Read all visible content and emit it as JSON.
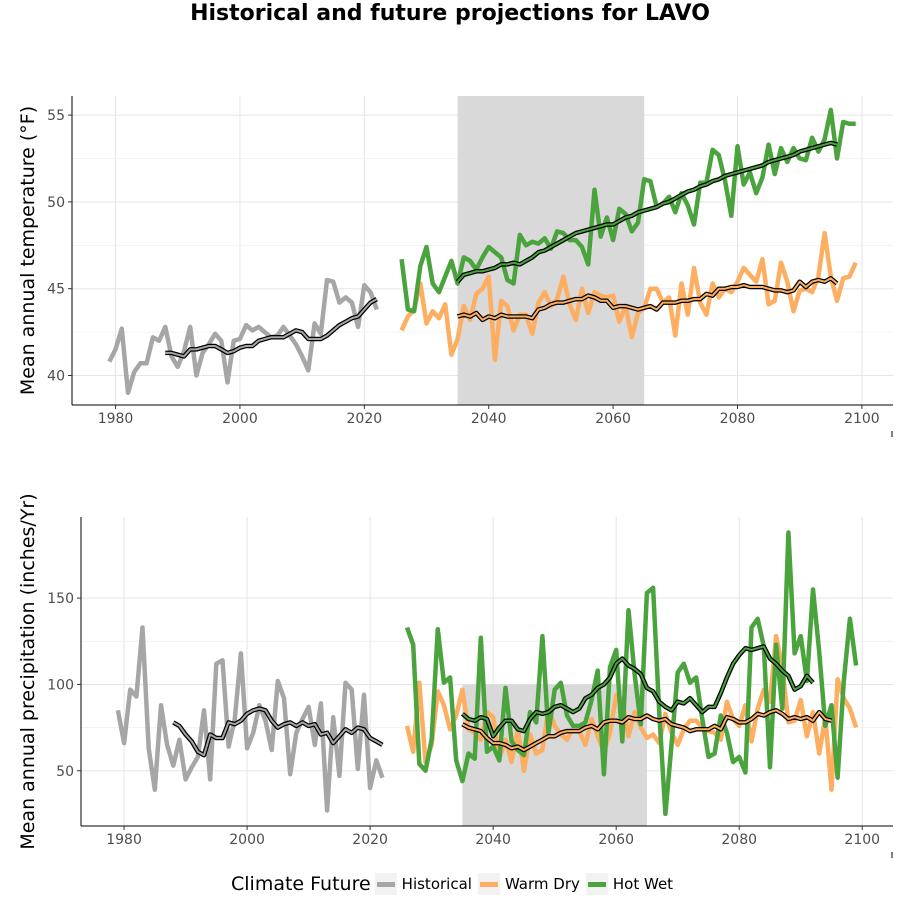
{
  "title": "Historical and future projections for LAVO",
  "legend": {
    "title": "Climate Future",
    "items": [
      {
        "label": "Historical",
        "color": "#a6a6a6"
      },
      {
        "label": "Warm Dry",
        "color": "#fdae61"
      },
      {
        "label": "Hot Wet",
        "color": "#4aa33d"
      }
    ]
  },
  "chart_data": [
    {
      "type": "line",
      "ylabel": "Mean annual temperature (°F)",
      "xlabel": "",
      "xlim": [
        1973,
        2105
      ],
      "ylim": [
        38.3,
        56.1
      ],
      "xticks": [
        1980,
        2000,
        2020,
        2040,
        2060,
        2080,
        2100
      ],
      "yticks": [
        40,
        45,
        50,
        55
      ],
      "shaded_period": [
        2035,
        2065
      ],
      "grid": true,
      "series": [
        {
          "name": "Historical",
          "color": "#a6a6a6",
          "x_start": 1979,
          "values": [
            40.8,
            41.5,
            42.7,
            39.0,
            40.2,
            40.7,
            40.7,
            42.2,
            42.0,
            42.8,
            41.1,
            40.5,
            41.4,
            42.8,
            40.0,
            41.3,
            41.8,
            42.4,
            42.0,
            39.6,
            42.0,
            42.1,
            42.9,
            42.6,
            42.8,
            42.5,
            42.2,
            42.3,
            42.8,
            42.3,
            41.8,
            41.1,
            40.3,
            43.0,
            42.4,
            45.5,
            45.4,
            44.2,
            44.5,
            44.2,
            42.8,
            45.2,
            44.8,
            43.8
          ]
        },
        {
          "name": "Historical (rolling mean)",
          "color": "#000000",
          "smooth": true,
          "x_start": 1988,
          "values": [
            41.3,
            41.3,
            41.2,
            41.1,
            41.5,
            41.5,
            41.6,
            41.7,
            41.7,
            41.5,
            41.3,
            41.4,
            41.6,
            41.7,
            41.7,
            42.0,
            42.1,
            42.2,
            42.2,
            42.2,
            42.4,
            42.6,
            42.5,
            42.1,
            42.1,
            42.1,
            42.3,
            42.6,
            42.9,
            43.1,
            43.3,
            43.4,
            43.8,
            44.2,
            44.4
          ]
        },
        {
          "name": "Warm Dry",
          "color": "#fdae61",
          "x_start": 2026,
          "values": [
            42.6,
            43.4,
            43.8,
            45.3,
            43.0,
            43.7,
            43.3,
            44.1,
            41.2,
            42.1,
            44.0,
            43.2,
            44.7,
            45.0,
            45.7,
            40.9,
            44.3,
            44.0,
            42.6,
            43.5,
            43.5,
            42.4,
            44.2,
            44.8,
            44.0,
            44.4,
            45.7,
            44.1,
            43.2,
            45.0,
            43.6,
            44.8,
            44.6,
            44.5,
            44.6,
            43.1,
            44.0,
            42.2,
            43.6,
            43.9,
            45.0,
            45.0,
            44.2,
            44.5,
            42.3,
            45.3,
            43.5,
            46.2,
            44.2,
            43.5,
            45.3,
            44.5,
            45.0,
            44.8,
            45.4,
            46.2,
            45.8,
            45.4,
            46.7,
            44.1,
            44.3,
            46.5,
            45.4,
            43.7,
            44.9,
            45.0,
            44.8,
            45.7,
            48.2,
            45.7,
            44.3,
            45.6,
            45.7,
            46.5
          ]
        },
        {
          "name": "Hot Wet",
          "color": "#4aa33d",
          "x_start": 2026,
          "values": [
            46.7,
            43.8,
            43.7,
            46.3,
            47.4,
            45.3,
            44.8,
            45.7,
            46.6,
            45.3,
            46.8,
            46.6,
            46.1,
            46.8,
            47.4,
            47.1,
            46.8,
            45.5,
            45.3,
            48.1,
            47.5,
            47.7,
            47.6,
            47.9,
            47.3,
            48.3,
            48.2,
            47.8,
            47.8,
            47.4,
            46.4,
            50.7,
            48.0,
            49.1,
            47.8,
            49.6,
            49.3,
            48.3,
            48.8,
            51.3,
            51.2,
            49.7,
            49.9,
            50.3,
            49.4,
            50.5,
            49.8,
            48.7,
            51.1,
            51.1,
            53.0,
            52.7,
            51.2,
            49.2,
            53.2,
            51.0,
            51.7,
            50.5,
            51.4,
            53.3,
            51.6,
            53.1,
            52.3,
            53.1,
            52.5,
            52.4,
            53.7,
            52.9,
            53.6,
            55.3,
            52.5,
            54.6,
            54.5,
            54.5
          ]
        },
        {
          "name": "Warm Dry (rolling mean)",
          "color": "#000000",
          "smooth": true,
          "x_start": 2035,
          "values": [
            43.4,
            43.5,
            43.4,
            43.6,
            43.2,
            43.4,
            43.3,
            43.5,
            43.4,
            43.4,
            43.4,
            43.4,
            43.3,
            43.8,
            43.9,
            44.1,
            44.2,
            44.2,
            44.3,
            44.4,
            44.4,
            44.6,
            44.5,
            44.3,
            44.3,
            43.9,
            44.0,
            44.0,
            43.9,
            43.8,
            43.9,
            44.0,
            43.8,
            44.2,
            44.2,
            44.2,
            44.3,
            44.3,
            44.4,
            44.4,
            44.7,
            44.6,
            45.0,
            45.0,
            45.1,
            45.1,
            45.2,
            45.1,
            45.1,
            45.1,
            45.0,
            44.9,
            44.9,
            44.8,
            44.9,
            45.4,
            45.1,
            45.4,
            45.5,
            45.4,
            45.6,
            45.3
          ]
        },
        {
          "name": "Hot Wet (rolling mean)",
          "color": "#000000",
          "smooth": true,
          "x_start": 2035,
          "values": [
            45.4,
            45.8,
            45.9,
            46.0,
            46.0,
            46.1,
            46.2,
            46.4,
            46.4,
            46.5,
            46.4,
            46.6,
            46.8,
            47.1,
            47.2,
            47.4,
            47.6,
            47.8,
            48.0,
            48.2,
            48.3,
            48.4,
            48.5,
            48.6,
            48.7,
            48.7,
            48.9,
            49.1,
            49.2,
            49.4,
            49.5,
            49.6,
            49.7,
            49.9,
            50.0,
            50.2,
            50.4,
            50.6,
            50.7,
            50.9,
            51.0,
            51.2,
            51.3,
            51.5,
            51.6,
            51.7,
            51.8,
            51.9,
            52.0,
            52.1,
            52.3,
            52.4,
            52.5,
            52.6,
            52.7,
            52.9,
            53.0,
            53.1,
            53.2,
            53.3,
            53.4,
            53.3
          ]
        }
      ]
    },
    {
      "type": "line",
      "ylabel": "Mean annual precipitation (inches/Yr)",
      "xlabel": "",
      "xlim": [
        1973,
        2105
      ],
      "ylim": [
        18,
        197
      ],
      "xticks": [
        1980,
        2000,
        2020,
        2040,
        2060,
        2080,
        2100
      ],
      "yticks": [
        50,
        100,
        150
      ],
      "shaded_period": [
        2035,
        2065
      ],
      "shaded_top": 100,
      "grid": true,
      "series": [
        {
          "name": "Historical",
          "color": "#a6a6a6",
          "x_start": 1979,
          "values": [
            85,
            66,
            97,
            93,
            133,
            63,
            39,
            88,
            65,
            53,
            68,
            45,
            52,
            58,
            85,
            45,
            112,
            114,
            64,
            80,
            118,
            63,
            72,
            88,
            79,
            62,
            102,
            92,
            48,
            72,
            80,
            87,
            65,
            89,
            27,
            81,
            47,
            101,
            97,
            51,
            94,
            40,
            56,
            46
          ]
        },
        {
          "name": "Historical (rolling mean)",
          "color": "#000000",
          "smooth": true,
          "x_start": 1988,
          "values": [
            78,
            76,
            71,
            67,
            61,
            59,
            71,
            69,
            69,
            78,
            77,
            79,
            83,
            85,
            86,
            85,
            79,
            75,
            77,
            78,
            76,
            78,
            76,
            77,
            71,
            72,
            66,
            70,
            74,
            72,
            75,
            74,
            69,
            67,
            65
          ]
        },
        {
          "name": "Warm Dry",
          "color": "#fdae61",
          "x_start": 2026,
          "values": [
            76,
            61,
            101,
            55,
            65,
            96,
            88,
            74,
            82,
            97,
            74,
            72,
            68,
            84,
            81,
            57,
            68,
            55,
            74,
            50,
            71,
            60,
            62,
            86,
            76,
            71,
            68,
            75,
            73,
            65,
            80,
            70,
            61,
            72,
            94,
            91,
            70,
            84,
            75,
            69,
            71,
            66,
            83,
            72,
            65,
            74,
            79,
            79,
            75,
            73,
            72,
            68,
            90,
            80,
            76,
            88,
            67,
            86,
            97,
            90,
            128,
            110,
            78,
            79,
            91,
            70,
            84,
            60,
            81,
            39,
            103,
            92,
            86,
            75
          ]
        },
        {
          "name": "Hot Wet",
          "color": "#4aa33d",
          "x_start": 2026,
          "values": [
            133,
            123,
            54,
            50,
            68,
            132,
            101,
            104,
            56,
            44,
            60,
            57,
            127,
            61,
            64,
            56,
            98,
            67,
            62,
            59,
            84,
            78,
            128,
            72,
            97,
            101,
            82,
            76,
            76,
            78,
            91,
            108,
            48,
            110,
            120,
            67,
            143,
            106,
            77,
            153,
            156,
            84,
            25,
            65,
            107,
            112,
            101,
            104,
            80,
            58,
            60,
            82,
            72,
            55,
            58,
            49,
            133,
            138,
            122,
            52,
            123,
            86,
            188,
            118,
            128,
            102,
            155,
            119,
            76,
            88,
            46,
            102,
            138,
            111
          ]
        },
        {
          "name": "Warm Dry (rolling mean)",
          "color": "#000000",
          "smooth": true,
          "x_start": 2035,
          "values": [
            77,
            75,
            74,
            73,
            69,
            66,
            66,
            65,
            63,
            64,
            62,
            64,
            66,
            68,
            70,
            70,
            72,
            73,
            73,
            73,
            75,
            76,
            74,
            78,
            79,
            79,
            78,
            81,
            80,
            80,
            82,
            80,
            79,
            80,
            77,
            76,
            75,
            73,
            74,
            74,
            74,
            76,
            74,
            81,
            80,
            78,
            78,
            80,
            83,
            82,
            84,
            85,
            83,
            80,
            81,
            80,
            81,
            79,
            84,
            80,
            79
          ]
        },
        {
          "name": "Hot Wet (rolling mean)",
          "color": "#000000",
          "smooth": true,
          "x_start": 2035,
          "values": [
            83,
            80,
            79,
            81,
            80,
            70,
            75,
            79,
            79,
            74,
            73,
            80,
            84,
            83,
            84,
            87,
            88,
            86,
            84,
            86,
            92,
            94,
            98,
            100,
            104,
            112,
            115,
            111,
            109,
            106,
            98,
            96,
            90,
            87,
            85,
            90,
            89,
            92,
            88,
            84,
            87,
            87,
            95,
            104,
            112,
            117,
            121,
            120,
            121,
            122,
            115,
            112,
            108,
            105,
            97,
            99,
            105,
            101
          ]
        }
      ]
    }
  ]
}
